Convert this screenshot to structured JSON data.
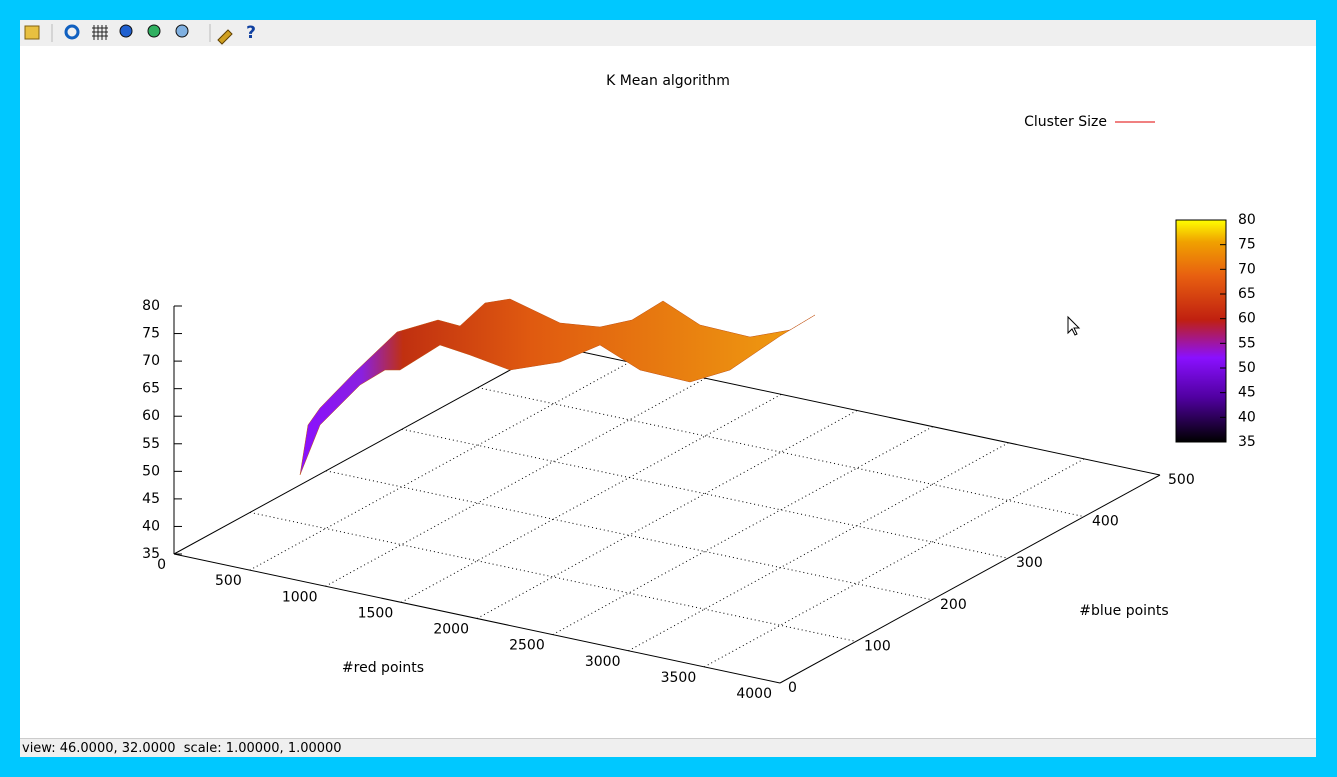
{
  "plot": {
    "title": "K Mean algorithm",
    "legend": "Cluster Size",
    "z_ticks": [
      35,
      40,
      45,
      50,
      55,
      60,
      65,
      70,
      75,
      80
    ],
    "red_ticks": [
      0,
      500,
      1000,
      1500,
      2000,
      2500,
      3000,
      3500,
      4000
    ],
    "blue_ticks": [
      0,
      100,
      200,
      300,
      400,
      500
    ],
    "colorbar_ticks": [
      35,
      40,
      45,
      50,
      55,
      60,
      65,
      70,
      75,
      80
    ],
    "x_label": "#red points",
    "y_label": "#blue points"
  },
  "status": "view: 46.0000, 32.0000  scale: 1.00000, 1.00000"
}
